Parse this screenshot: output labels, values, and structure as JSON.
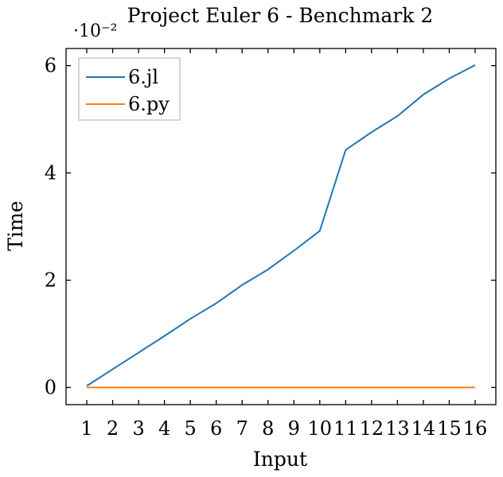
{
  "chart_data": {
    "type": "line",
    "title": "Project Euler 6 - Benchmark 2",
    "xlabel": "Input",
    "ylabel": "Time",
    "y_scale_label": "·10⁻²",
    "y_scale_factor": 0.01,
    "x": [
      1,
      2,
      3,
      4,
      5,
      6,
      7,
      8,
      9,
      10,
      11,
      12,
      13,
      14,
      15,
      16
    ],
    "xlim": [
      0.2,
      16.8
    ],
    "ylim": [
      -0.0032,
      0.0632
    ],
    "x_ticks": [
      "1",
      "2",
      "3",
      "4",
      "5",
      "6",
      "7",
      "8",
      "9",
      "10",
      "11",
      "12",
      "13",
      "14",
      "15",
      "16"
    ],
    "y_ticks": [
      {
        "value": 0,
        "label": "0"
      },
      {
        "value": 0.02,
        "label": "2"
      },
      {
        "value": 0.04,
        "label": "4"
      },
      {
        "value": 0.06,
        "label": "6"
      }
    ],
    "grid": false,
    "legend_position": "top-left",
    "series": [
      {
        "name": "6.jl",
        "color": "#1f77b4",
        "values": [
          0.0003,
          0.0034,
          0.0065,
          0.0096,
          0.0128,
          0.0157,
          0.0191,
          0.022,
          0.0255,
          0.0292,
          0.0443,
          0.0476,
          0.0506,
          0.0546,
          0.0576,
          0.0601
        ]
      },
      {
        "name": "6.py",
        "color": "#ff7f0e",
        "values": [
          0.0,
          0.0,
          0.0,
          0.0,
          0.0,
          0.0,
          0.0,
          0.0,
          0.0,
          0.0,
          0.0,
          0.0,
          0.0,
          0.0,
          0.0,
          0.0
        ]
      }
    ]
  }
}
